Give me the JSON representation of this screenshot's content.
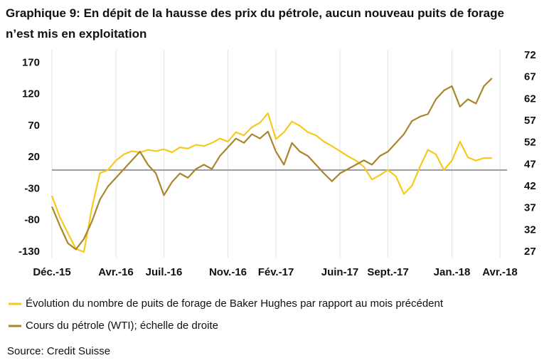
{
  "chart_data": {
    "type": "line",
    "title": "Graphique 9: En dépit de la hausse des prix du pétrole, aucun nouveau puits de forage n’est mis en exploitation",
    "x": [
      0,
      0.5,
      1,
      1.5,
      2,
      2.5,
      3,
      3.5,
      4,
      4.5,
      5,
      5.5,
      6,
      6.5,
      7,
      7.5,
      8,
      8.5,
      9,
      9.5,
      10,
      10.5,
      11,
      11.5,
      12,
      12.5,
      13,
      13.5,
      14,
      14.5,
      15,
      15.5,
      16,
      16.5,
      17,
      17.5,
      18,
      18.5,
      19,
      19.5,
      20,
      20.5,
      21,
      21.5,
      22,
      22.5,
      23,
      23.5,
      24,
      24.5,
      25,
      25.5,
      26,
      26.5,
      27,
      27.5
    ],
    "series": [
      {
        "name": "Évolution du nombre de puits de forage de Baker Hughes par rapport au mois précédent",
        "color": "#f7c81e",
        "values": [
          -41,
          -75,
          -100,
          -125,
          -130,
          -60,
          -5,
          0,
          15,
          25,
          30,
          28,
          32,
          30,
          33,
          28,
          36,
          34,
          40,
          38,
          43,
          50,
          45,
          60,
          55,
          68,
          75,
          90,
          49,
          60,
          77,
          70,
          60,
          55,
          45,
          38,
          30,
          22,
          15,
          5,
          -15,
          -8,
          0,
          -10,
          -38,
          -25,
          5,
          32,
          25,
          0,
          15,
          45,
          20,
          15,
          19,
          19
        ]
      },
      {
        "name": "Cours du pétrole (WTI); échelle de droite",
        "color": "#a8872c",
        "axis": "y2",
        "values": [
          37.4,
          33,
          29,
          27.6,
          30,
          34,
          39,
          42,
          44,
          46,
          48,
          50,
          47,
          45,
          40,
          43,
          45,
          44,
          46,
          47,
          46,
          49,
          51,
          53,
          52,
          54,
          53,
          54.6,
          50,
          47,
          52,
          50,
          49,
          47,
          45,
          43.2,
          45,
          46,
          47,
          48,
          47,
          49,
          50,
          52,
          54,
          57,
          58,
          58.6,
          62,
          64,
          65,
          60.3,
          62,
          61,
          65,
          66.8
        ]
      }
    ],
    "xlim": [
      0,
      28
    ],
    "xticks": [
      {
        "value": 0,
        "label": "Déc.-15"
      },
      {
        "value": 4,
        "label": "Avr.-16"
      },
      {
        "value": 7,
        "label": "Juil.-16"
      },
      {
        "value": 11,
        "label": "Nov.-16"
      },
      {
        "value": 14,
        "label": "Fév.-17"
      },
      {
        "value": 18,
        "label": "Juin-17"
      },
      {
        "value": 21,
        "label": "Sept.-17"
      },
      {
        "value": 25,
        "label": "Jan.-18"
      },
      {
        "value": 28,
        "label": "Avr.-18"
      }
    ],
    "ylim": [
      -139,
      185
    ],
    "yticks": [
      170,
      120,
      70,
      20,
      -30,
      -80,
      -130
    ],
    "y2lim": [
      25.7,
      72.5
    ],
    "y2ticks": [
      72,
      67,
      62,
      57,
      52,
      47,
      42,
      37,
      32,
      27
    ],
    "grid": true,
    "source": "Source: Credit Suisse"
  }
}
